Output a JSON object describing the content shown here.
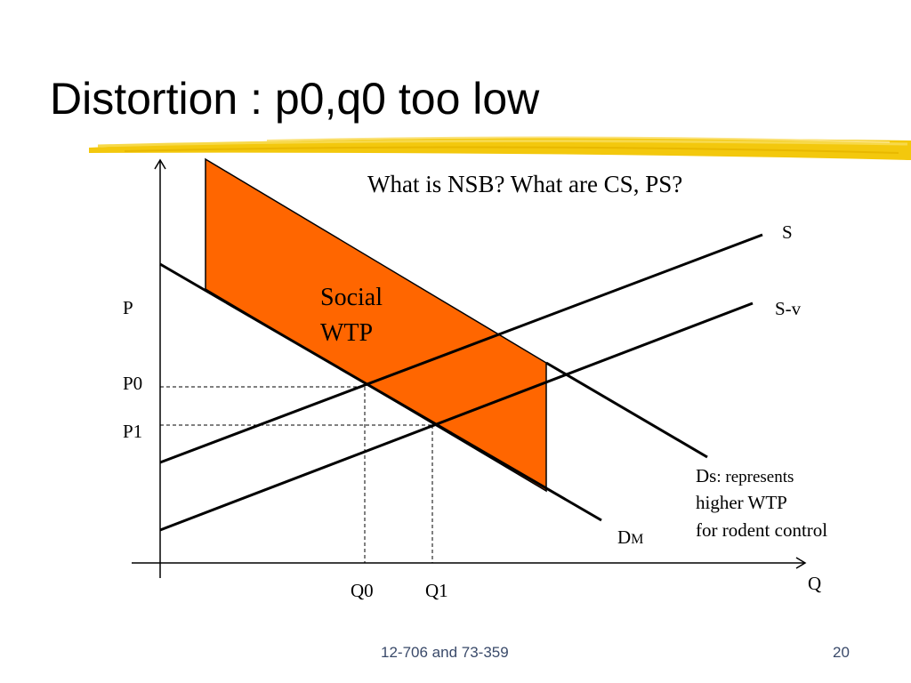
{
  "title": "Distortion : p0,q0 too low",
  "question": "What is NSB?  What are CS, PS?",
  "axes": {
    "y_label": "P",
    "x_label": "Q"
  },
  "price_labels": {
    "p0": "P0",
    "p1": "P1"
  },
  "quantity_labels": {
    "q0": "Q0",
    "q1": "Q1"
  },
  "curve_labels": {
    "supply": "S",
    "supply_minus_v": "S-v",
    "demand_market": "DM"
  },
  "region_label": {
    "line1": "Social",
    "line2": "WTP"
  },
  "note": {
    "ds_prefix": "Ds",
    "ds_suffix": ": represents",
    "line2": "higher WTP",
    "line3": "for rodent control"
  },
  "footer": {
    "course": "12-706 and 73-359",
    "page": "20"
  },
  "colors": {
    "region_fill": "#ff6600",
    "highlight": "#f2c500",
    "footer_text": "#3a4a6a"
  }
}
